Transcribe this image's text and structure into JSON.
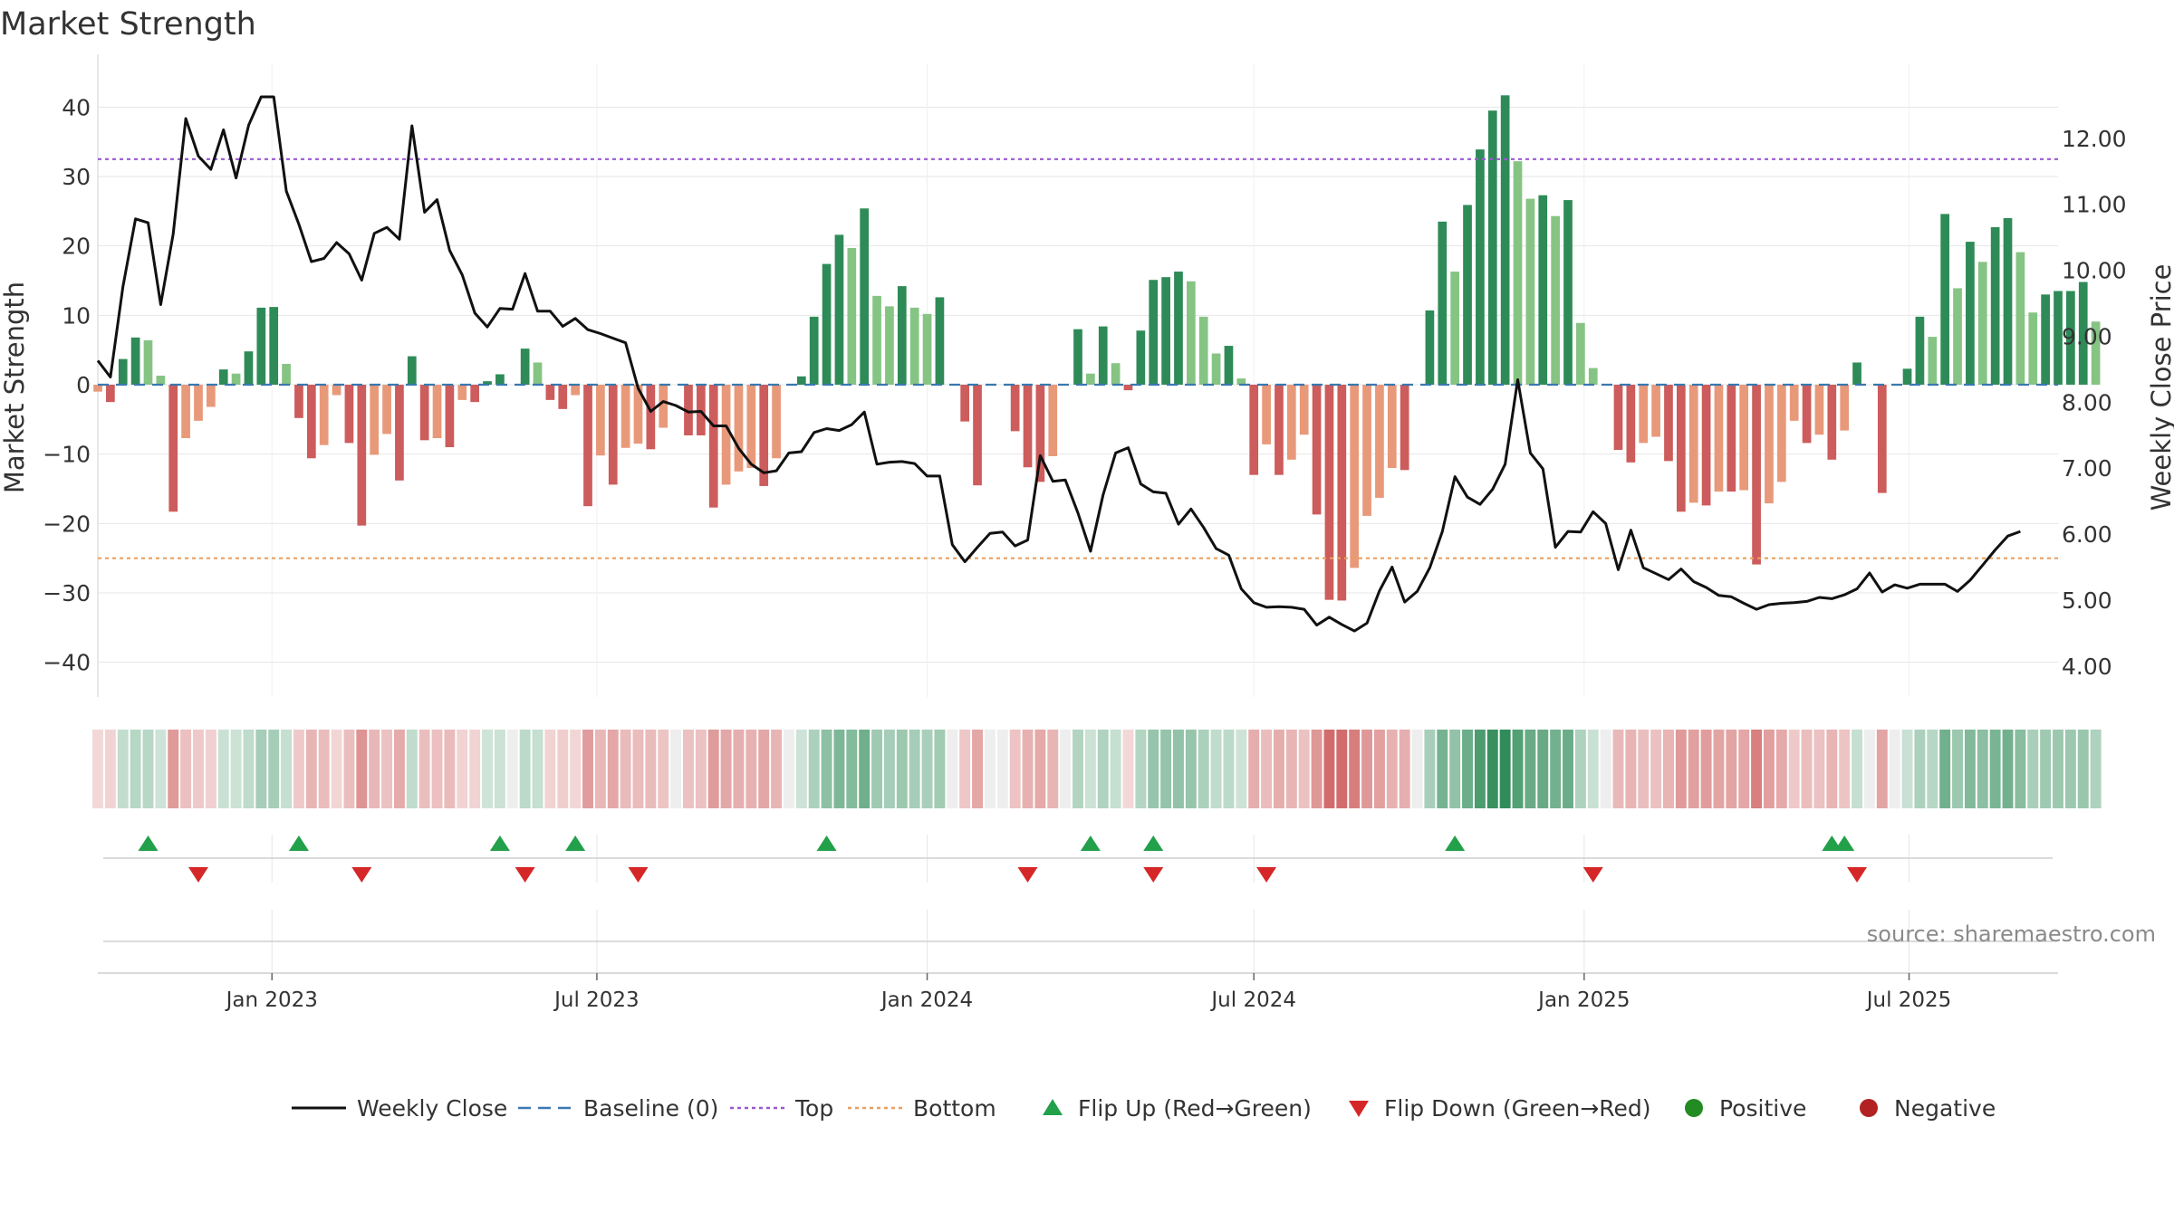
{
  "chart_data": {
    "type": "bar+line",
    "title": "Market Strength",
    "ylabel": "Market Strength",
    "y2label": "Weekly Close Price",
    "source": "source: sharemaestro.com",
    "ylim": [
      -45,
      45
    ],
    "y2lim": [
      3.53,
      13.0
    ],
    "yticks": [
      40,
      30,
      20,
      10,
      0,
      -10,
      -20,
      -30,
      -40
    ],
    "yticklabels": [
      "40",
      "30",
      "20",
      "10",
      "0",
      "−10",
      "−20",
      "−30",
      "−40"
    ],
    "y2ticks": [
      12,
      11,
      10,
      9,
      8,
      7,
      6,
      5,
      4
    ],
    "y2ticklabels": [
      "12.00",
      "11.00",
      "10.00",
      "9.00",
      "8.00",
      "7.00",
      "6.00",
      "5.00",
      "4.00"
    ],
    "xlim": [
      "2022-09-26",
      "2025-09-22"
    ],
    "xticks": [
      {
        "date": "2023-01-01",
        "label": "Jan 2023"
      },
      {
        "date": "2023-07-01",
        "label": "Jul 2023"
      },
      {
        "date": "2024-01-01",
        "label": "Jan 2024"
      },
      {
        "date": "2024-07-01",
        "label": "Jul 2024"
      },
      {
        "date": "2025-01-01",
        "label": "Jan 2025"
      },
      {
        "date": "2025-07-01",
        "label": "Jul 2025"
      }
    ],
    "start_date": "2022-09-26",
    "top_level": 32.5,
    "bottom_level": -25,
    "strength": [
      -1,
      -2.5,
      3.7,
      6.8,
      6.4,
      1.3,
      -18.3,
      -7.7,
      -5.2,
      -3.2,
      2.2,
      1.6,
      4.8,
      11.1,
      11.2,
      3.0,
      -4.8,
      -10.6,
      -8.7,
      -1.5,
      -8.4,
      -20.3,
      -10.1,
      -7.1,
      -13.8,
      4.1,
      -8.0,
      -7.7,
      -9.0,
      -2.2,
      -2.5,
      0.5,
      1.5,
      0,
      5.2,
      3.2,
      -2.2,
      -3.5,
      -1.5,
      -17.5,
      -10.2,
      -14.4,
      -9.1,
      -8.5,
      -9.3,
      -6.2,
      0,
      -7.3,
      -7.3,
      -17.7,
      -14.4,
      -12.5,
      -12.0,
      -14.6,
      -10.6,
      0,
      1.2,
      9.8,
      17.4,
      21.6,
      19.7,
      25.4,
      12.8,
      11.3,
      14.2,
      11.1,
      10.2,
      12.6,
      0,
      -5.3,
      -14.5,
      0,
      0,
      -6.7,
      -11.9,
      -14.0,
      -10.3,
      0,
      8.0,
      1.6,
      8.4,
      3.1,
      -0.8,
      7.8,
      15.1,
      15.5,
      16.3,
      14.9,
      9.8,
      4.5,
      5.6,
      0.9,
      -13.0,
      -8.6,
      -13.0,
      -10.8,
      -7.2,
      -18.7,
      -31.0,
      -31.1,
      -26.4,
      -18.9,
      -16.3,
      -12.0,
      -12.3,
      0,
      10.7,
      23.5,
      16.3,
      25.9,
      33.9,
      39.5,
      41.7,
      32.2,
      26.8,
      27.3,
      24.3,
      26.6,
      8.9,
      2.4,
      0,
      -9.4,
      -11.2,
      -8.4,
      -7.5,
      -11.0,
      -18.3,
      -17.0,
      -17.4,
      -15.4,
      -15.4,
      -15.2,
      -25.9,
      -17.1,
      -14.0,
      -5.2,
      -8.4,
      -7.2,
      -10.8,
      -6.6,
      3.2,
      0,
      -15.6,
      0,
      2.3,
      9.8,
      6.9,
      24.6,
      13.9,
      20.6,
      17.7,
      22.7,
      24.0,
      19.1,
      10.4,
      13.0,
      13.5,
      13.5,
      14.8,
      9.1
    ],
    "close": [
      8.63,
      8.38,
      9.75,
      10.78,
      10.72,
      9.48,
      10.55,
      12.3,
      11.73,
      11.53,
      12.13,
      11.4,
      12.2,
      12.63,
      12.63,
      11.2,
      10.7,
      10.13,
      10.18,
      10.42,
      10.25,
      9.85,
      10.56,
      10.65,
      10.47,
      12.19,
      10.88,
      11.07,
      10.3,
      9.93,
      9.35,
      9.14,
      9.42,
      9.41,
      9.95,
      9.38,
      9.38,
      9.15,
      9.27,
      9.1,
      9.04,
      8.97,
      8.9,
      8.21,
      7.86,
      8.01,
      7.95,
      7.85,
      7.86,
      7.64,
      7.64,
      7.3,
      7.06,
      6.93,
      6.96,
      7.23,
      7.25,
      7.54,
      7.6,
      7.57,
      7.66,
      7.85,
      7.06,
      7.09,
      7.1,
      7.07,
      6.88,
      6.88,
      5.84,
      5.58,
      5.8,
      6.01,
      6.03,
      5.82,
      5.91,
      7.19,
      6.8,
      6.82,
      6.32,
      5.74,
      6.59,
      7.23,
      7.31,
      6.76,
      6.64,
      6.62,
      6.15,
      6.38,
      6.1,
      5.78,
      5.68,
      5.17,
      4.96,
      4.89,
      4.9,
      4.89,
      4.86,
      4.62,
      4.74,
      4.63,
      4.53,
      4.65,
      5.14,
      5.5,
      4.97,
      5.13,
      5.49,
      6.04,
      6.87,
      6.56,
      6.45,
      6.68,
      7.06,
      8.34,
      7.23,
      6.99,
      5.8,
      6.04,
      6.03,
      6.34,
      6.16,
      5.46,
      6.06,
      5.49,
      5.4,
      5.31,
      5.47,
      5.28,
      5.19,
      5.07,
      5.05,
      4.95,
      4.86,
      4.93,
      4.95,
      4.96,
      4.98,
      5.04,
      5.02,
      5.08,
      5.17,
      5.41,
      5.12,
      5.23,
      5.18,
      5.24,
      5.24,
      5.24,
      5.13,
      5.3,
      5.53,
      5.76,
      5.97,
      6.04
    ],
    "flip_up": [
      "2022-10-24",
      "2023-01-16",
      "2023-05-08",
      "2023-06-19",
      "2023-11-06",
      "2024-04-01",
      "2024-05-06",
      "2024-10-21",
      "2025-05-19",
      "2025-05-26"
    ],
    "flip_down": [
      "2022-11-21",
      "2023-02-20",
      "2023-05-22",
      "2023-07-24",
      "2024-02-26",
      "2024-05-06",
      "2024-07-08",
      "2025-01-06",
      "2025-06-02"
    ],
    "legend": [
      {
        "key": "close",
        "label": "Weekly Close"
      },
      {
        "key": "baseline",
        "label": "Baseline (0)"
      },
      {
        "key": "top",
        "label": "Top"
      },
      {
        "key": "bottom",
        "label": "Bottom"
      },
      {
        "key": "flip_up",
        "label": "Flip Up (Red→Green)"
      },
      {
        "key": "flip_down",
        "label": "Flip Down (Green→Red)"
      },
      {
        "key": "positive",
        "label": "Positive"
      },
      {
        "key": "negative",
        "label": "Negative"
      }
    ]
  },
  "colors": {
    "pos_strong": "#2e8b57",
    "pos_light": "#86c484",
    "neg_strong": "#cd5c5c",
    "neg_light": "#e8997a",
    "close_line": "#111111",
    "baseline": "#3a78b0",
    "top_line": "#9b59d0",
    "bottom_line": "#e8a060",
    "flip_up": "#22a04a",
    "flip_down": "#d62728",
    "legend_positive": "#228b22",
    "legend_negative": "#b22222",
    "grid": "#e6e6e6",
    "text": "#333333",
    "source_text": "#8a8a8a"
  }
}
